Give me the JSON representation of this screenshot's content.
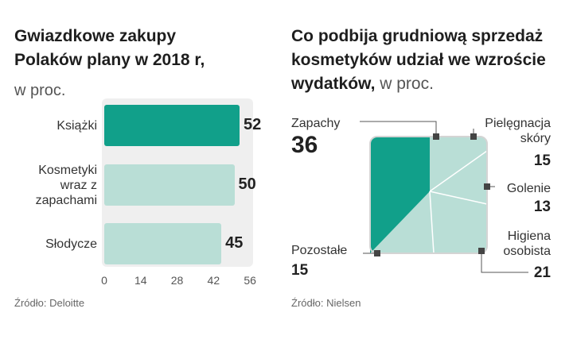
{
  "left": {
    "title_line1": "Gwiazdkowe zakupy",
    "title_line2": "Polaków plany w 2018 r,",
    "unit": "w proc.",
    "source": "Źródło: Deloitte"
  },
  "right": {
    "title_line1": "Co podbija grudniową sprzedaż",
    "title_line2": "kosmetyków udział we wzroście",
    "title_line3_bold": "wydatków,",
    "unit": " w proc.",
    "source": "Źródło: Nielsen"
  },
  "chart_data": [
    {
      "type": "bar",
      "orientation": "horizontal",
      "title": "Gwiazdkowe zakupy Polaków plany w 2018 r, w proc.",
      "categories": [
        "Książki",
        "Kosmetyki wraz z zapachami",
        "Słodycze"
      ],
      "category_lines": [
        [
          "Książki"
        ],
        [
          "Kosmetyki",
          "wraz z",
          "zapachami"
        ],
        [
          "Słodycze"
        ]
      ],
      "values": [
        52,
        50,
        45
      ],
      "xlim": [
        0,
        56
      ],
      "xticks": [
        0,
        14,
        28,
        42,
        56
      ],
      "colors": [
        "#11a08a",
        "#b9ded6",
        "#b9ded6"
      ]
    },
    {
      "type": "area",
      "title": "Co podbija grudniową sprzedaż kosmetyków udział we wzroście wydatków, w proc.",
      "categories": [
        "Zapachy",
        "Pielęgnacja skóry",
        "Golenie",
        "Higiena osobista",
        "Pozostałe"
      ],
      "values": [
        36,
        15,
        13,
        21,
        15
      ],
      "labels": {
        "Zapachy": "Zapachy",
        "Pielegnacja1": "Pielęgnacja",
        "Pielegnacja2": "skóry",
        "Golenie": "Golenie",
        "Higiena1": "Higiena",
        "Higiena2": "osobista",
        "Pozostale": "Pozostałe"
      },
      "values_text": {
        "Zapachy": "36",
        "Pielegnacja": "15",
        "Golenie": "13",
        "Higiena": "21",
        "Pozostale": "15"
      },
      "colors": {
        "highlight": "#11a08a",
        "others": "#b9ded6",
        "border": "#d4d4d4"
      }
    }
  ]
}
